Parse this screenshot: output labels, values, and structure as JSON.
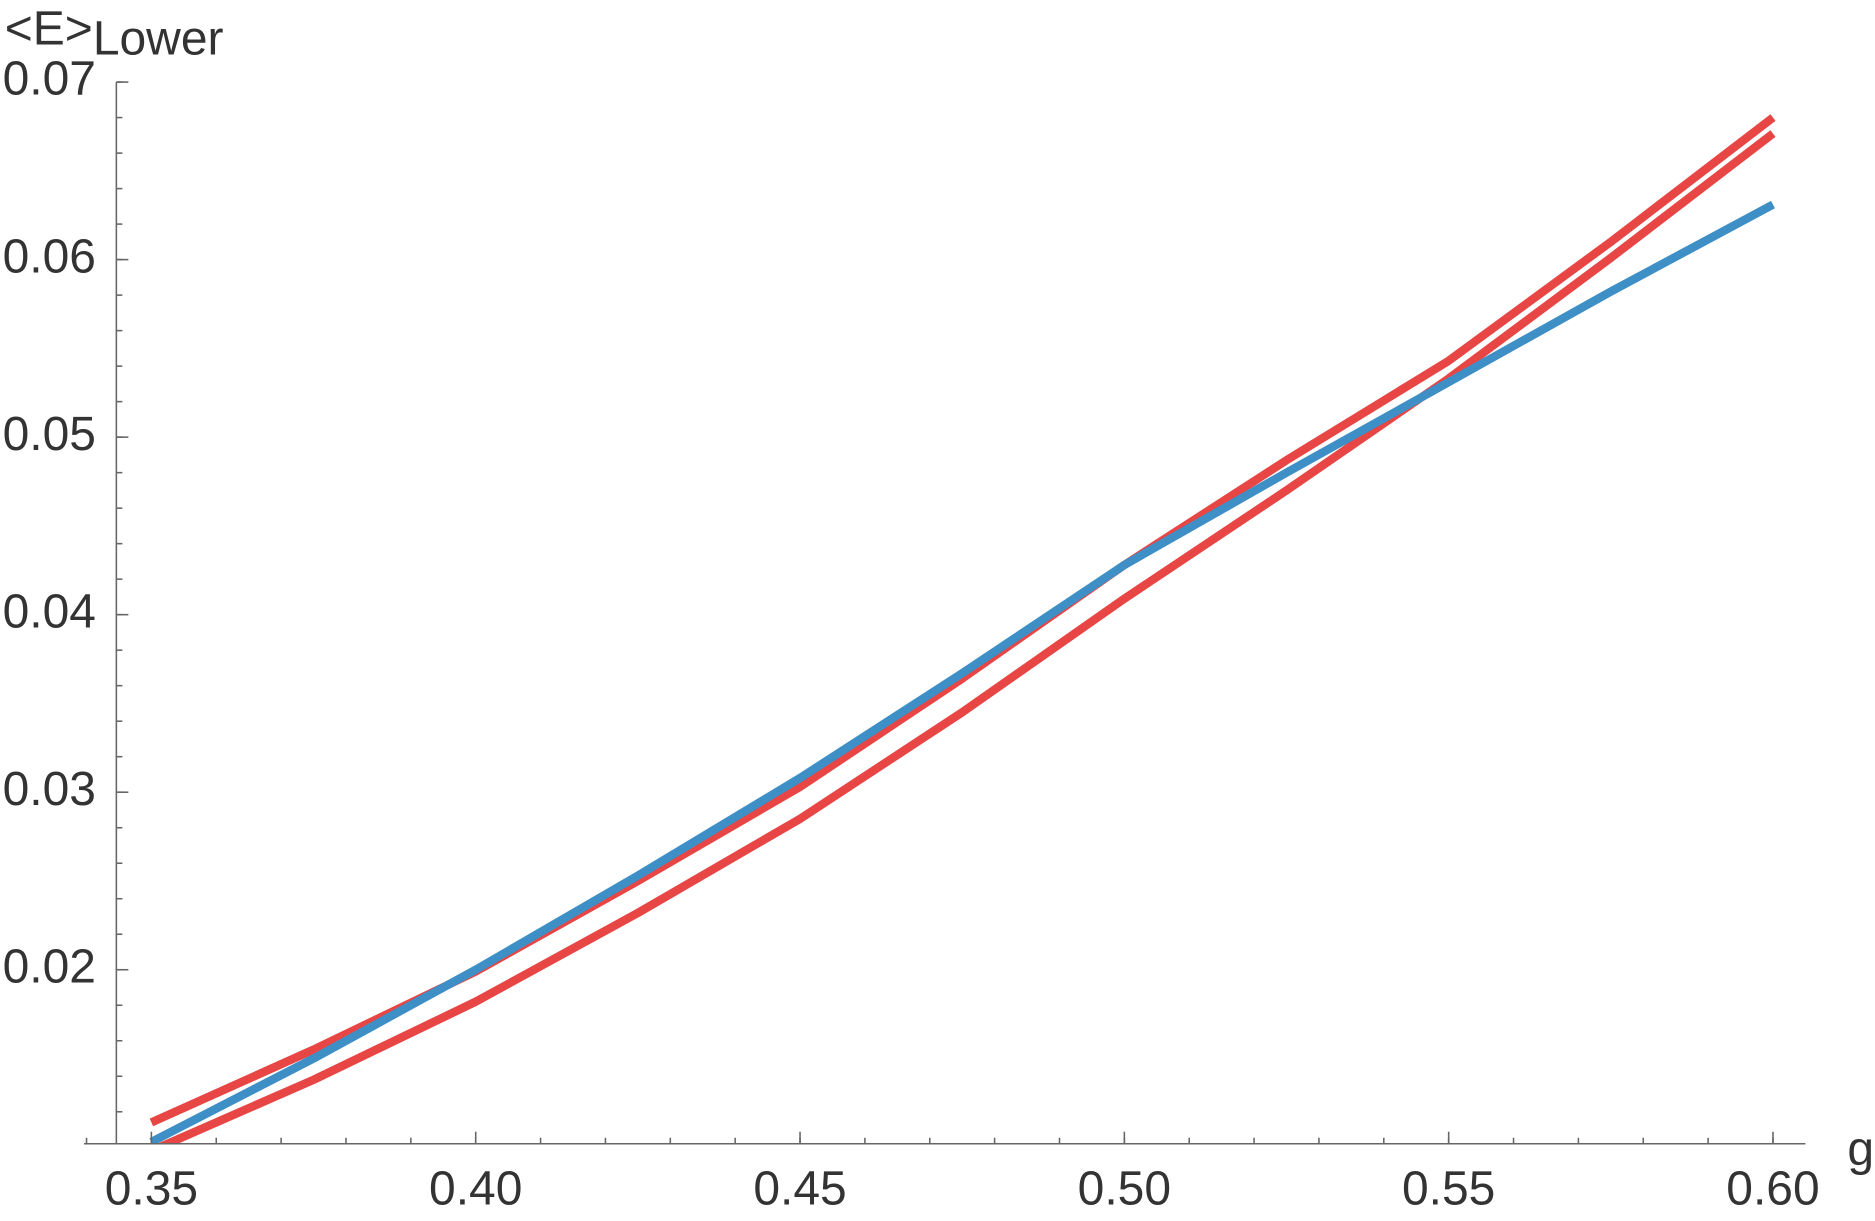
{
  "chart_data": {
    "type": "line",
    "y_label": "<E>",
    "y_label_subscript": "Lower",
    "x_label": "g",
    "x": [
      0.35,
      0.375,
      0.4,
      0.425,
      0.45,
      0.475,
      0.5,
      0.525,
      0.55,
      0.575,
      0.6
    ],
    "series": [
      {
        "color": "#e84545",
        "values": [
          0.0114,
          0.0155,
          0.0199,
          0.025,
          0.0303,
          0.0364,
          0.0428,
          0.0487,
          0.0543,
          0.061,
          0.068
        ]
      },
      {
        "color": "#e84545",
        "values": [
          0.0098,
          0.0138,
          0.0182,
          0.0232,
          0.0285,
          0.0345,
          0.0409,
          0.047,
          0.0533,
          0.0601,
          0.0671
        ]
      },
      {
        "color": "#3d8fc6",
        "values": [
          0.0103,
          0.015,
          0.02,
          0.0253,
          0.0308,
          0.0367,
          0.0428,
          0.048,
          0.0531,
          0.0582,
          0.0631
        ]
      }
    ],
    "xlim": [
      0.3446,
      0.605
    ],
    "ylim": [
      0.0102,
      0.07
    ],
    "xticks": [
      0.35,
      {
        "value": 0.4,
        "label": "0.40"
      },
      0.45,
      {
        "value": 0.5,
        "label": "0.50"
      },
      0.55,
      {
        "value": 0.6,
        "label": "0.60"
      }
    ],
    "yticks": [
      0.02,
      0.03,
      0.04,
      0.05,
      0.06,
      0.07
    ]
  }
}
